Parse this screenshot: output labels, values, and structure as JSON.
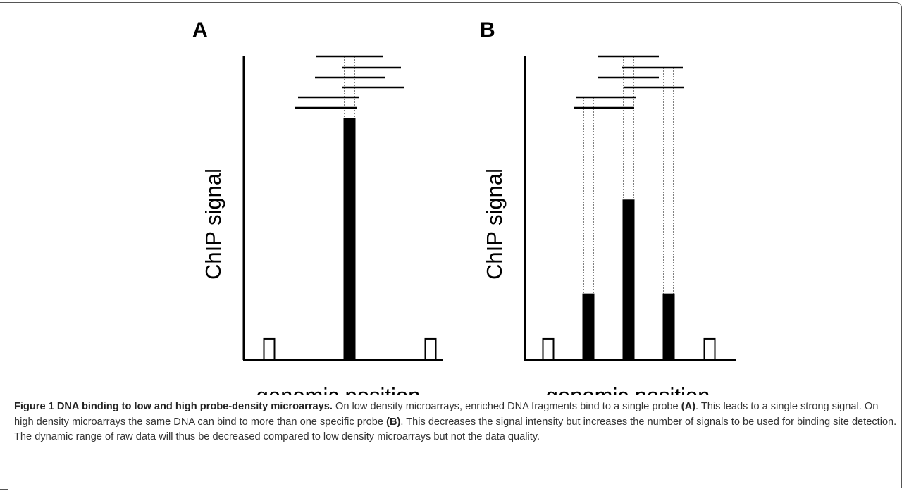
{
  "figure": {
    "panels": [
      {
        "label": "A",
        "ylabel": "ChIP signal",
        "xlabel": "genomic position",
        "probes": [
          {
            "signal": 0.085,
            "filled": false
          },
          {
            "signal": 1.0,
            "filled": true
          },
          {
            "signal": 0.085,
            "filled": false
          }
        ],
        "fragments": 6
      },
      {
        "label": "B",
        "ylabel": "ChIP signal",
        "xlabel": "genomic position",
        "probes": [
          {
            "signal": 0.085,
            "filled": false
          },
          {
            "signal": 0.27,
            "filled": true
          },
          {
            "signal": 0.66,
            "filled": true
          },
          {
            "signal": 0.27,
            "filled": true
          },
          {
            "signal": 0.085,
            "filled": false
          }
        ],
        "fragments": 6
      }
    ]
  },
  "caption": {
    "title": "Figure 1 DNA binding to low and high probe-density microarrays.",
    "t1": " On low density microarrays, enriched DNA fragments bind to a single probe ",
    "ref_a": "(A)",
    "t2": ". This leads to a single strong signal. On high density microarrays the same DNA can bind to more than one specific probe ",
    "ref_b": "(B)",
    "t3": ". This decreases the signal intensity but increases the number of signals to be used for binding site detection. The dynamic range of raw data will thus be decreased compared to low density microarrays but not the data quality."
  }
}
